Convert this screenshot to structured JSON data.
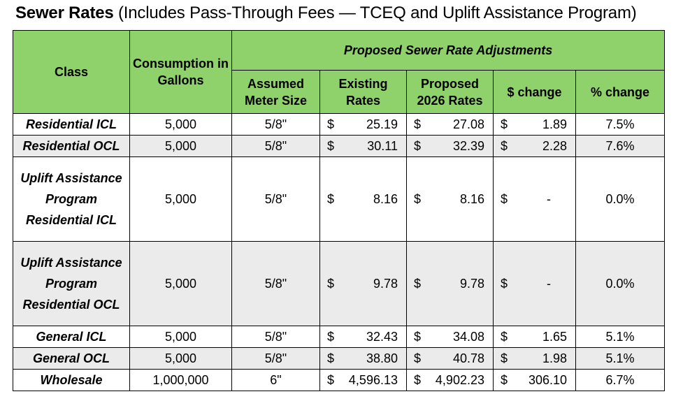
{
  "title": {
    "bold": "Sewer Rates",
    "rest": " (Includes Pass-Through Fees — TCEQ and Uplift Assistance Program)"
  },
  "headers": {
    "class": "Class",
    "consumption": "Consumption in Gallons",
    "proposed_group": "Proposed Sewer Rate Adjustments",
    "meter": "Assumed Meter Size",
    "existing": "Existing Rates",
    "proposed": "Proposed 2026 Rates",
    "dollar_change": "$ change",
    "pct_change": "% change"
  },
  "currency_symbol": "$",
  "rows": [
    {
      "class": "Residential ICL",
      "consumption": "5,000",
      "meter": "5/8\"",
      "existing": "25.19",
      "proposed": "27.08",
      "dollar_change": "1.89",
      "pct_change": "7.5%"
    },
    {
      "class": "Residential OCL",
      "consumption": "5,000",
      "meter": "5/8\"",
      "existing": "30.11",
      "proposed": "32.39",
      "dollar_change": "2.28",
      "pct_change": "7.6%"
    },
    {
      "class": "Uplift Assistance Program Residential ICL",
      "consumption": "5,000",
      "meter": "5/8\"",
      "existing": "8.16",
      "proposed": "8.16",
      "dollar_change": "-",
      "pct_change": "0.0%"
    },
    {
      "class": "Uplift Assistance Program Residential OCL",
      "consumption": "5,000",
      "meter": "5/8\"",
      "existing": "9.78",
      "proposed": "9.78",
      "dollar_change": "-",
      "pct_change": "0.0%"
    },
    {
      "class": "General ICL",
      "consumption": "5,000",
      "meter": "5/8\"",
      "existing": "32.43",
      "proposed": "34.08",
      "dollar_change": "1.65",
      "pct_change": "5.1%"
    },
    {
      "class": "General OCL",
      "consumption": "5,000",
      "meter": "5/8\"",
      "existing": "38.80",
      "proposed": "40.78",
      "dollar_change": "1.98",
      "pct_change": "5.1%"
    },
    {
      "class": "Wholesale",
      "consumption": "1,000,000",
      "meter": "6\"",
      "existing": "4,596.13",
      "proposed": "4,902.23",
      "dollar_change": "306.10",
      "pct_change": "6.7%"
    }
  ]
}
